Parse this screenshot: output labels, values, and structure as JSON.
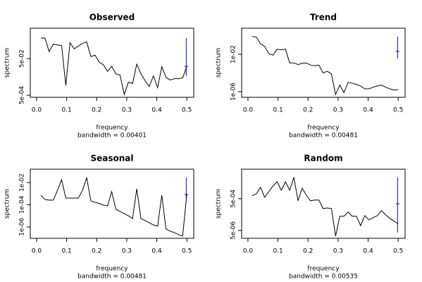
{
  "chart_data": [
    {
      "type": "line",
      "title": "Observed",
      "xlabel": "frequency",
      "sub": "bandwidth = 0.00401",
      "ylabel": "spectrum",
      "log_y": true,
      "color": "#000000",
      "x": [
        0.0139,
        0.0278,
        0.0417,
        0.0556,
        0.0694,
        0.0833,
        0.0972,
        0.1111,
        0.125,
        0.1389,
        0.1528,
        0.1667,
        0.1806,
        0.1944,
        0.2083,
        0.2222,
        0.2361,
        0.25,
        0.2639,
        0.2778,
        0.2917,
        0.3056,
        0.3194,
        0.3333,
        0.3472,
        0.3611,
        0.375,
        0.3889,
        0.4028,
        0.4167,
        0.4306,
        0.4444,
        0.4583,
        0.4722,
        0.4861,
        0.5
      ],
      "values": [
        0.67,
        0.67,
        0.12,
        0.31,
        0.28,
        0.26,
        0.0017,
        0.37,
        0.17,
        0.24,
        0.34,
        0.41,
        0.065,
        0.077,
        0.032,
        0.023,
        0.01,
        0.019,
        0.0074,
        0.0062,
        0.00055,
        0.0026,
        0.0022,
        0.025,
        0.0074,
        0.0031,
        0.0015,
        0.0057,
        0.0013,
        0.018,
        0.0048,
        0.0034,
        0.004,
        0.004,
        0.0044,
        0.019
      ],
      "xlim": [
        -0.021,
        0.523
      ],
      "xticks": [
        {
          "value": 0,
          "label": "0.0"
        },
        0.1,
        0.2,
        0.3,
        0.4,
        0.5
      ],
      "ylim": [
        0.000385,
        2.3
      ],
      "yticks": [
        {
          "value": 0.0005,
          "label": "5e-04"
        },
        {
          "value": 0.05,
          "label": "5e-02"
        }
      ],
      "ci": {
        "x": 0.498,
        "center": 0.019,
        "lower": 0.0057,
        "upper": 0.67,
        "color": "#0000ff"
      }
    },
    {
      "type": "line",
      "title": "Trend",
      "xlabel": "frequency",
      "sub": "bandwidth = 0.00481",
      "ylabel": "spectrum",
      "log_y": true,
      "color": "#000000",
      "x": [
        0.0139,
        0.0278,
        0.0417,
        0.0556,
        0.0694,
        0.0833,
        0.0972,
        0.1111,
        0.125,
        0.1389,
        0.1528,
        0.1667,
        0.1806,
        0.1944,
        0.2083,
        0.2222,
        0.2361,
        0.25,
        0.2639,
        0.2778,
        0.2917,
        0.3056,
        0.3194,
        0.3333,
        0.3472,
        0.3611,
        0.375,
        0.3889,
        0.4028,
        0.4167,
        0.4306,
        0.4444,
        0.4583,
        0.4722,
        0.4861,
        0.5
      ],
      "values": [
        0.8,
        0.7,
        0.13,
        0.07,
        0.012,
        0.008,
        0.035,
        0.03,
        0.035,
        0.0012,
        0.0012,
        0.0008,
        0.0011,
        0.0012,
        0.0007,
        0.0006,
        0.0007,
        0.0001,
        0.00015,
        8e-05,
        5e-07,
        5e-06,
        8e-07,
        1e-05,
        8e-06,
        6e-06,
        4e-06,
        2e-06,
        2e-06,
        3e-06,
        4e-06,
        5e-06,
        3e-06,
        2e-06,
        1.5e-06,
        1.6e-06
      ],
      "xlim": [
        -0.021,
        0.523
      ],
      "xticks": [
        {
          "value": 0,
          "label": "0.0"
        },
        0.1,
        0.2,
        0.3,
        0.4,
        0.5
      ],
      "ylim": [
        2.5e-07,
        6.2
      ],
      "yticks": [
        {
          "value": 1e-06,
          "label": "1e-06"
        },
        {
          "value": 0.01,
          "label": "1e-02"
        }
      ],
      "ci": {
        "x": 0.498,
        "center": 0.02,
        "lower": 0.0035,
        "upper": 0.77,
        "color": "#0000ff"
      }
    },
    {
      "type": "line",
      "title": "Seasonal",
      "xlabel": "frequency",
      "sub": "bandwidth = 0.00481",
      "ylabel": "spectrum",
      "log_y": true,
      "color": "#000000",
      "x": [
        0.0139,
        0.0278,
        0.0417,
        0.0556,
        0.0694,
        0.0833,
        0.0972,
        0.1111,
        0.125,
        0.1389,
        0.1528,
        0.1667,
        0.1806,
        0.1944,
        0.2083,
        0.2222,
        0.2361,
        0.25,
        0.2639,
        0.2778,
        0.2917,
        0.3056,
        0.3194,
        0.3333,
        0.3472,
        0.3611,
        0.375,
        0.3889,
        0.4028,
        0.4167,
        0.4306,
        0.4444,
        0.4583,
        0.4722,
        0.4861,
        0.5
      ],
      "values": [
        0.00072,
        0.0003,
        0.00026,
        0.00026,
        0.002,
        0.018,
        0.0004,
        0.0004,
        0.0004,
        0.0004,
        0.002,
        0.028,
        0.00022,
        0.00017,
        0.00013,
        9.3e-05,
        8e-05,
        0.0015,
        3.9e-05,
        2.5e-05,
        1.6e-05,
        1e-05,
        5.8e-06,
        0.0027,
        5.8e-06,
        3.7e-06,
        2.4e-06,
        1.5e-06,
        1.2e-06,
        0.00072,
        6.5e-07,
        4.2e-07,
        3.1e-07,
        2e-07,
        1.5e-07,
        0.00095
      ],
      "xlim": [
        -0.021,
        0.523
      ],
      "xticks": [
        {
          "value": 0,
          "label": "0.0"
        },
        0.1,
        0.2,
        0.3,
        0.4,
        0.5
      ],
      "ylim": [
        9.5e-08,
        0.16
      ],
      "yticks": [
        {
          "value": 1e-06,
          "label": "1e-06"
        },
        {
          "value": 0.0001,
          "label": "1e-04"
        },
        {
          "value": 0.01,
          "label": "1e-02"
        }
      ],
      "ci": {
        "x": 0.498,
        "center": 0.00083,
        "lower": 0.00022,
        "upper": 0.028,
        "color": "#0000ff"
      }
    },
    {
      "type": "line",
      "title": "Random",
      "xlabel": "frequency",
      "sub": "bandwidth = 0.00535",
      "ylabel": "spectrum",
      "log_y": true,
      "color": "#000000",
      "x": [
        0.0139,
        0.0278,
        0.0417,
        0.0556,
        0.0694,
        0.0833,
        0.0972,
        0.1111,
        0.125,
        0.1389,
        0.1528,
        0.1667,
        0.1806,
        0.1944,
        0.2083,
        0.2222,
        0.2361,
        0.25,
        0.2639,
        0.2778,
        0.2917,
        0.3056,
        0.3194,
        0.3333,
        0.3472,
        0.3611,
        0.375,
        0.3889,
        0.4028,
        0.4167,
        0.4306,
        0.4444,
        0.4583,
        0.4722,
        0.4861,
        0.5
      ],
      "values": [
        0.00075,
        0.001,
        0.0026,
        0.00061,
        0.0014,
        0.0032,
        0.0058,
        0.0017,
        0.0058,
        0.0017,
        0.011,
        0.00037,
        0.0023,
        0.00083,
        0.00037,
        0.00041,
        0.00041,
        0.00012,
        0.00013,
        0.00012,
        2.2e-06,
        3.9e-05,
        3.9e-05,
        7.2e-05,
        3.9e-05,
        3.9e-05,
        1e-05,
        4.3e-05,
        2.3e-05,
        3.2e-05,
        4.3e-05,
        8.8e-05,
        4.8e-05,
        2.9e-05,
        1.9e-05,
        1.3e-05
      ],
      "xlim": [
        -0.021,
        0.523
      ],
      "xticks": [
        {
          "value": 0,
          "label": "0.0"
        },
        0.1,
        0.2,
        0.3,
        0.4,
        0.5
      ],
      "ylim": [
        1.6e-06,
        0.036
      ],
      "yticks": [
        {
          "value": 5e-06,
          "label": "5e-06"
        },
        {
          "value": 0.0005,
          "label": "5e-04"
        }
      ],
      "ci": {
        "x": 0.498,
        "center": 0.00024,
        "lower": 3.7e-06,
        "upper": 0.011,
        "color": "#0000ff"
      }
    }
  ]
}
